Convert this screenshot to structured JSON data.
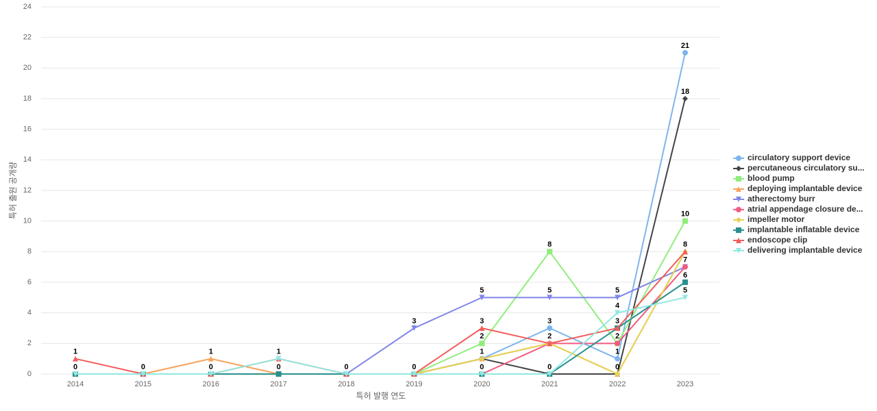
{
  "chart_data": {
    "type": "line",
    "xlabel": "특허 발행 연도",
    "ylabel": "특허 출원 공개량",
    "categories": [
      "2014",
      "2015",
      "2016",
      "2017",
      "2018",
      "2019",
      "2020",
      "2021",
      "2022",
      "2023"
    ],
    "ylim": [
      0,
      24
    ],
    "yticks": [
      0,
      2,
      4,
      6,
      8,
      10,
      12,
      14,
      16,
      18,
      20,
      22,
      24
    ],
    "grid": true,
    "series": [
      {
        "name": "circulatory support device",
        "color": "#7cb5ec",
        "marker": "circle",
        "values": [
          0,
          0,
          0,
          0,
          0,
          0,
          1,
          3,
          1,
          21
        ]
      },
      {
        "name": "percutaneous circulatory su...",
        "color": "#434348",
        "marker": "diamond",
        "values": [
          0,
          0,
          0,
          0,
          0,
          0,
          1,
          0,
          0,
          18
        ]
      },
      {
        "name": "blood pump",
        "color": "#90ed7d",
        "marker": "square",
        "values": [
          0,
          0,
          0,
          0,
          0,
          0,
          2,
          8,
          2,
          10
        ]
      },
      {
        "name": "deploying implantable device",
        "color": "#f7a35c",
        "marker": "triangle",
        "values": [
          0,
          0,
          1,
          0,
          0,
          0,
          1,
          2,
          0,
          8
        ]
      },
      {
        "name": "atherectomy burr",
        "color": "#8085e9",
        "marker": "triangle-down",
        "values": [
          0,
          0,
          0,
          0,
          0,
          3,
          5,
          5,
          5,
          7
        ]
      },
      {
        "name": "atrial appendage closure de...",
        "color": "#f15c80",
        "marker": "circle",
        "values": [
          0,
          0,
          0,
          0,
          0,
          0,
          0,
          2,
          2,
          7
        ]
      },
      {
        "name": "impeller motor",
        "color": "#e4d354",
        "marker": "diamond",
        "values": [
          0,
          0,
          0,
          0,
          0,
          0,
          1,
          2,
          0,
          8
        ]
      },
      {
        "name": "implantable inflatable device",
        "color": "#2b908f",
        "marker": "square",
        "values": [
          0,
          0,
          0,
          0,
          0,
          0,
          0,
          0,
          3,
          6
        ]
      },
      {
        "name": "endoscope clip",
        "color": "#f45b5b",
        "marker": "triangle",
        "values": [
          1,
          0,
          0,
          1,
          0,
          0,
          3,
          2,
          3,
          8
        ]
      },
      {
        "name": "delivering implantable device",
        "color": "#91e8e1",
        "marker": "triangle-down",
        "values": [
          0,
          0,
          0,
          1,
          0,
          0,
          0,
          0,
          4,
          5
        ]
      }
    ]
  }
}
